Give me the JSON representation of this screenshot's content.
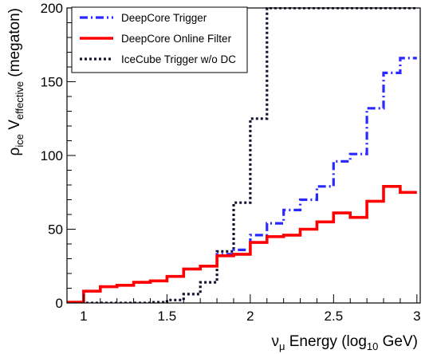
{
  "chart_data": {
    "type": "line",
    "step": true,
    "xlabel": {
      "base": "ν",
      "base_sub": "μ",
      "mid": " Energy (log",
      "mid_sub": "10",
      "tail": " GeV)"
    },
    "ylabel": {
      "base": "ρ",
      "base_sub": "ice",
      "mid": " V",
      "mid_sub": "effective",
      "tail": " (megaton)"
    },
    "xlim": [
      0.9,
      3.02
    ],
    "ylim": [
      0,
      200
    ],
    "x_ticks": [
      1,
      1.5,
      2,
      2.5,
      3
    ],
    "x_tick_labels": [
      "1",
      "1.5",
      "2",
      "2.5",
      "3"
    ],
    "y_ticks": [
      0,
      50,
      100,
      150,
      200
    ],
    "y_tick_labels": [
      "0",
      "50",
      "100",
      "150",
      "200"
    ],
    "grid": false,
    "legend_position": "top-left",
    "bin_edges": [
      0.9,
      1.0,
      1.1,
      1.2,
      1.3,
      1.4,
      1.5,
      1.6,
      1.7,
      1.8,
      1.9,
      2.0,
      2.1,
      2.2,
      2.3,
      2.4,
      2.5,
      2.6,
      2.7,
      2.8,
      2.9,
      3.0
    ],
    "series": [
      {
        "name": "DeepCore Trigger",
        "color": "#2a2aff",
        "style": "dash-dot",
        "values": [
          0.5,
          8,
          11,
          12,
          14,
          15,
          18,
          23,
          25,
          33,
          36,
          46,
          54,
          63,
          70,
          79,
          96,
          101,
          132,
          156,
          166
        ]
      },
      {
        "name": "DeepCore Online Filter",
        "color": "#ff0000",
        "style": "solid",
        "values": [
          0.5,
          8,
          11,
          12,
          14,
          15,
          18,
          23,
          25,
          32,
          33,
          41,
          45,
          46,
          50,
          55,
          61,
          58,
          69,
          79,
          75
        ]
      },
      {
        "name": "IceCube Trigger w/o DC",
        "color": "#141432",
        "style": "dotted",
        "values": [
          0,
          0,
          0,
          0,
          0,
          0.5,
          2,
          6,
          14,
          35,
          68,
          125,
          200,
          200,
          200,
          200,
          200,
          200,
          200,
          200,
          200
        ]
      }
    ]
  }
}
